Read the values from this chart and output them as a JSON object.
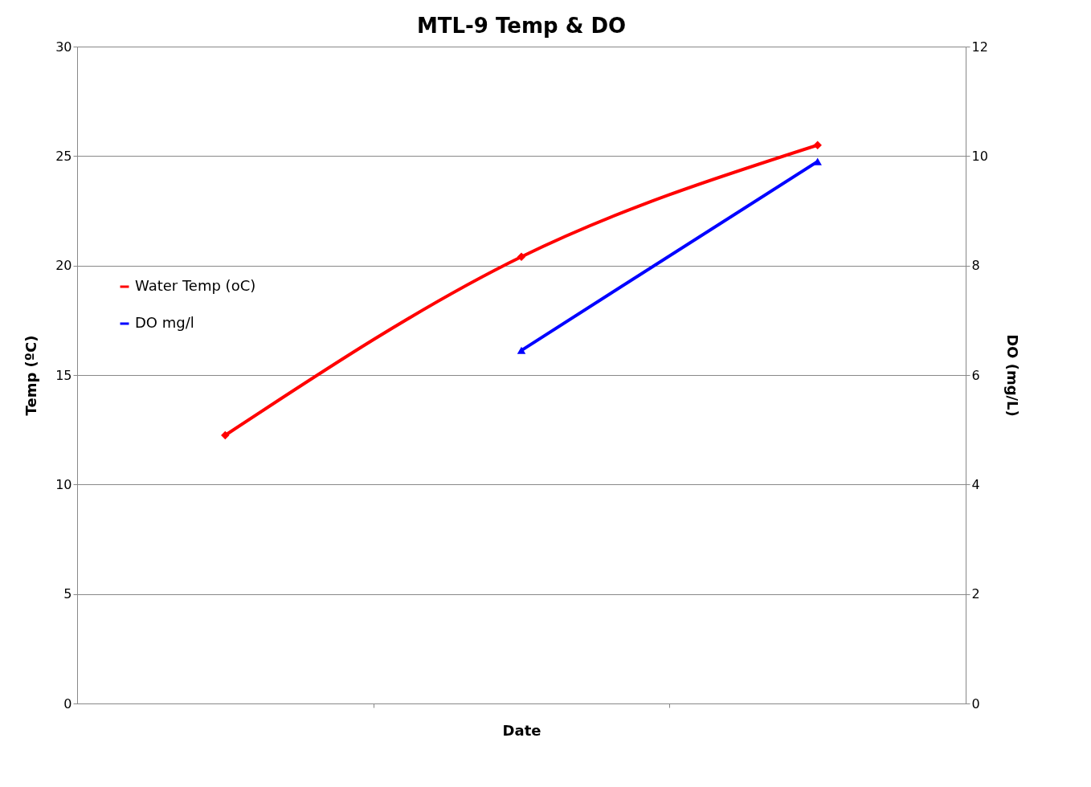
{
  "chart_data": {
    "type": "line",
    "title": "MTL-9 Temp & DO",
    "xlabel": "Date",
    "ylabel": "Temp (ºC)",
    "y2label": "DO (mg/L)",
    "categories": [
      null,
      null,
      null
    ],
    "series": [
      {
        "name": "Water Temp (oC)",
        "color": "#ff0000",
        "marker": "diamond",
        "values": [
          12.25,
          20.4,
          25.5
        ]
      },
      {
        "name": "DO mg/l",
        "color": "#0000ff",
        "marker": "triangle",
        "axis": "y2",
        "values": [
          null,
          6.45,
          9.9
        ]
      }
    ],
    "ylim": [
      0,
      30
    ],
    "yticks": [
      0,
      5,
      10,
      15,
      20,
      25,
      30
    ],
    "y2lim": [
      0,
      12
    ],
    "y2ticks": [
      0,
      2,
      4,
      6,
      8,
      10,
      12
    ],
    "grid": "y",
    "legend": "left",
    "line_style": "solid"
  }
}
